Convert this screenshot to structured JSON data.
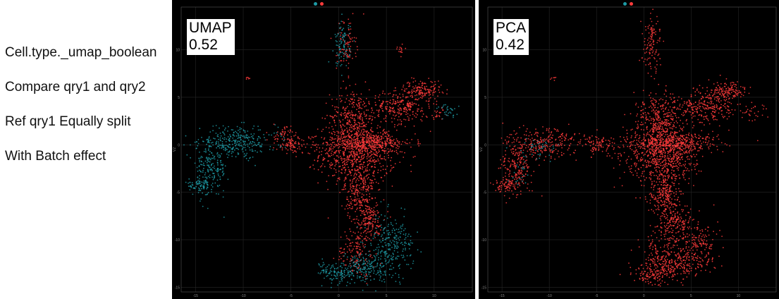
{
  "captions": [
    "Cell.type._umap_boolean",
    "Compare qry1 and qry2",
    "Ref qry1 Equally split",
    "With Batch effect"
  ],
  "colors": {
    "qry1": "#ff3b3b",
    "qry2": "#1d9aa5",
    "background": "#000000",
    "grid": "#262626"
  },
  "legend": {
    "title": "",
    "entries": [
      "",
      ""
    ]
  },
  "chart_data": [
    {
      "type": "scatter",
      "title": "UMAP",
      "badge_value": "0.52",
      "xlabel": "",
      "ylabel": "V2",
      "xlim": [
        -16.5,
        14
      ],
      "ylim": [
        -15.5,
        14.5
      ],
      "x_ticks": [
        -15,
        -10,
        -5,
        0,
        5,
        10
      ],
      "y_ticks": [
        -15,
        -10,
        -5,
        0,
        5,
        10
      ],
      "grid": true,
      "legend_position": "top",
      "series": [
        {
          "color": "#ff3b3b",
          "clusters": [
            {
              "x": 2.0,
              "y": -1.0,
              "sx": 2.0,
              "sy": 1.6,
              "n": 700
            },
            {
              "x": 3.0,
              "y": 0.2,
              "sx": 2.4,
              "sy": 0.5,
              "n": 350
            },
            {
              "x": 1.5,
              "y": 3.0,
              "sx": 1.2,
              "sy": 1.4,
              "n": 300
            },
            {
              "x": 6.5,
              "y": 4.0,
              "sx": 1.5,
              "sy": 0.9,
              "n": 260
            },
            {
              "x": 8.8,
              "y": 5.8,
              "sx": 1.0,
              "sy": 0.5,
              "n": 140
            },
            {
              "x": 2.2,
              "y": -5.2,
              "sx": 0.8,
              "sy": 1.5,
              "n": 240
            },
            {
              "x": 3.2,
              "y": -8.2,
              "sx": 0.8,
              "sy": 1.0,
              "n": 160
            },
            {
              "x": 1.8,
              "y": -11.5,
              "sx": 1.0,
              "sy": 1.2,
              "n": 130
            },
            {
              "x": 0.8,
              "y": 10.5,
              "sx": 0.5,
              "sy": 1.5,
              "n": 90
            },
            {
              "x": -4.8,
              "y": 0.0,
              "sx": 0.9,
              "sy": 0.5,
              "n": 90
            },
            {
              "x": -6.0,
              "y": 1.2,
              "sx": 0.5,
              "sy": 0.4,
              "n": 40
            },
            {
              "x": 6.5,
              "y": 10.0,
              "sx": 0.3,
              "sy": 0.3,
              "n": 15
            },
            {
              "x": 10.5,
              "y": 3.2,
              "sx": 0.5,
              "sy": 0.3,
              "n": 20
            },
            {
              "x": -9.5,
              "y": 7.0,
              "sx": 0.2,
              "sy": 0.2,
              "n": 6
            }
          ]
        },
        {
          "color": "#1d9aa5",
          "clusters": [
            {
              "x": -10.5,
              "y": 0.3,
              "sx": 2.0,
              "sy": 0.8,
              "n": 280
            },
            {
              "x": -13.5,
              "y": -2.5,
              "sx": 0.9,
              "sy": 1.5,
              "n": 220
            },
            {
              "x": -14.5,
              "y": -4.3,
              "sx": 0.6,
              "sy": 0.3,
              "n": 60
            },
            {
              "x": 5.5,
              "y": -10.5,
              "sx": 1.2,
              "sy": 1.5,
              "n": 240
            },
            {
              "x": 3.0,
              "y": -12.8,
              "sx": 1.3,
              "sy": 0.8,
              "n": 180
            },
            {
              "x": 0.5,
              "y": -13.7,
              "sx": 1.0,
              "sy": 0.5,
              "n": 90
            },
            {
              "x": -1.2,
              "y": -13.2,
              "sx": 0.4,
              "sy": 0.6,
              "n": 40
            },
            {
              "x": 0.4,
              "y": 10.5,
              "sx": 0.4,
              "sy": 1.2,
              "n": 90
            },
            {
              "x": 11.5,
              "y": 3.5,
              "sx": 0.6,
              "sy": 0.4,
              "n": 30
            }
          ]
        }
      ]
    },
    {
      "type": "scatter",
      "title": "PCA",
      "badge_value": "0.42",
      "xlabel": "",
      "ylabel": "V2",
      "xlim": [
        -16.5,
        14
      ],
      "ylim": [
        -15.5,
        14.5
      ],
      "x_ticks": [
        -15,
        -10,
        -5,
        0,
        5,
        10
      ],
      "y_ticks": [
        -15,
        -10,
        -5,
        0,
        5,
        10
      ],
      "grid": true,
      "legend_position": "top",
      "series": [
        {
          "color": "#ff3b3b",
          "clusters": [
            {
              "x": 2.0,
              "y": -1.0,
              "sx": 2.0,
              "sy": 1.6,
              "n": 700
            },
            {
              "x": 3.0,
              "y": 0.2,
              "sx": 2.4,
              "sy": 0.5,
              "n": 350
            },
            {
              "x": 1.5,
              "y": 3.0,
              "sx": 1.2,
              "sy": 1.4,
              "n": 300
            },
            {
              "x": 6.5,
              "y": 4.0,
              "sx": 1.5,
              "sy": 0.9,
              "n": 260
            },
            {
              "x": 8.8,
              "y": 5.8,
              "sx": 1.0,
              "sy": 0.5,
              "n": 140
            },
            {
              "x": 2.2,
              "y": -5.2,
              "sx": 0.8,
              "sy": 1.5,
              "n": 240
            },
            {
              "x": 3.2,
              "y": -8.2,
              "sx": 0.8,
              "sy": 1.0,
              "n": 160
            },
            {
              "x": 1.8,
              "y": -11.5,
              "sx": 1.0,
              "sy": 1.2,
              "n": 130
            },
            {
              "x": 0.8,
              "y": 10.5,
              "sx": 0.5,
              "sy": 1.5,
              "n": 120
            },
            {
              "x": -4.8,
              "y": 0.0,
              "sx": 0.9,
              "sy": 0.5,
              "n": 90
            },
            {
              "x": -10.5,
              "y": 0.3,
              "sx": 2.0,
              "sy": 0.8,
              "n": 260
            },
            {
              "x": -13.5,
              "y": -2.5,
              "sx": 0.9,
              "sy": 1.5,
              "n": 200
            },
            {
              "x": -14.5,
              "y": -4.3,
              "sx": 0.6,
              "sy": 0.3,
              "n": 60
            },
            {
              "x": 5.5,
              "y": -10.5,
              "sx": 1.2,
              "sy": 1.5,
              "n": 220
            },
            {
              "x": 3.0,
              "y": -12.8,
              "sx": 1.3,
              "sy": 0.8,
              "n": 170
            },
            {
              "x": 0.5,
              "y": -13.7,
              "sx": 1.0,
              "sy": 0.5,
              "n": 90
            },
            {
              "x": 11.5,
              "y": 3.5,
              "sx": 0.6,
              "sy": 0.4,
              "n": 30
            },
            {
              "x": -9.5,
              "y": 7.0,
              "sx": 0.2,
              "sy": 0.2,
              "n": 6
            }
          ]
        },
        {
          "color": "#1d9aa5",
          "clusters": [
            {
              "x": -11.5,
              "y": -0.5,
              "sx": 1.0,
              "sy": 0.6,
              "n": 40
            },
            {
              "x": -13.0,
              "y": -3.0,
              "sx": 0.5,
              "sy": 0.8,
              "n": 20
            }
          ]
        }
      ]
    }
  ]
}
